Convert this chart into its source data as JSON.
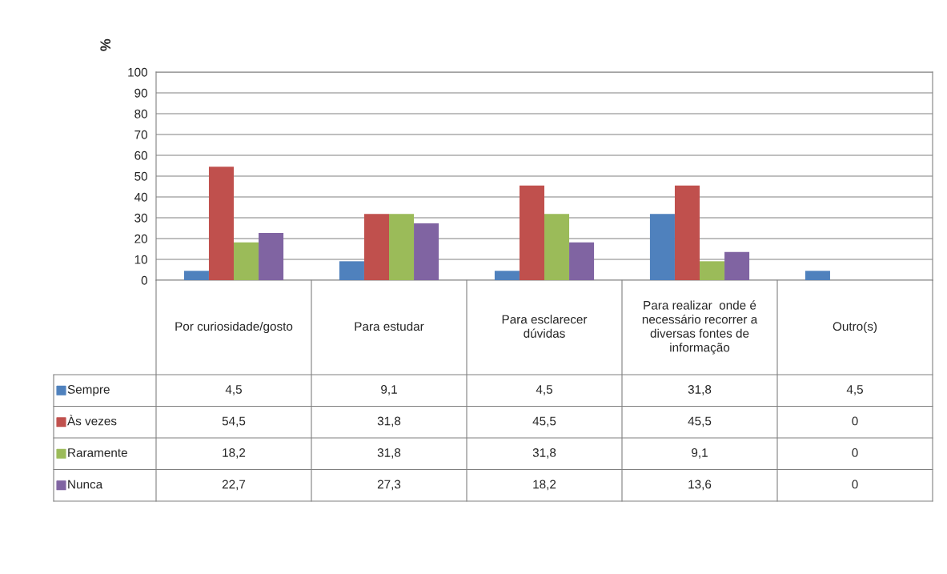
{
  "chart_data": {
    "type": "bar",
    "ylabel": "%",
    "categories": [
      "Por curiosidade/gosto",
      "Para estudar",
      "Para esclarecer dúvidas",
      "Para realizar  onde é necessário recorrer a diversas fontes de informação",
      "Outro(s)"
    ],
    "series": [
      {
        "name": "Sempre",
        "color": "#4f81bd",
        "values": [
          4.5,
          9.1,
          4.5,
          31.8,
          4.5
        ],
        "value_labels": [
          "4,5",
          "9,1",
          "4,5",
          "31,8",
          "4,5"
        ]
      },
      {
        "name": "Às vezes",
        "color": "#c0504d",
        "values": [
          54.5,
          31.8,
          45.5,
          45.5,
          0
        ],
        "value_labels": [
          "54,5",
          "31,8",
          "45,5",
          "45,5",
          "0"
        ]
      },
      {
        "name": "Raramente",
        "color": "#9bbb59",
        "values": [
          18.2,
          31.8,
          31.8,
          9.1,
          0
        ],
        "value_labels": [
          "18,2",
          "31,8",
          "31,8",
          "9,1",
          "0"
        ]
      },
      {
        "name": "Nunca",
        "color": "#8064a2",
        "values": [
          22.7,
          27.3,
          18.2,
          13.6,
          0
        ],
        "value_labels": [
          "22,7",
          "27,3",
          "18,2",
          "13,6",
          "0"
        ]
      }
    ],
    "ylim": [
      0,
      100
    ],
    "yticks": [
      0,
      10,
      20,
      30,
      40,
      50,
      60,
      70,
      80,
      90,
      100
    ],
    "grid": "y",
    "legend": "bottom left"
  }
}
